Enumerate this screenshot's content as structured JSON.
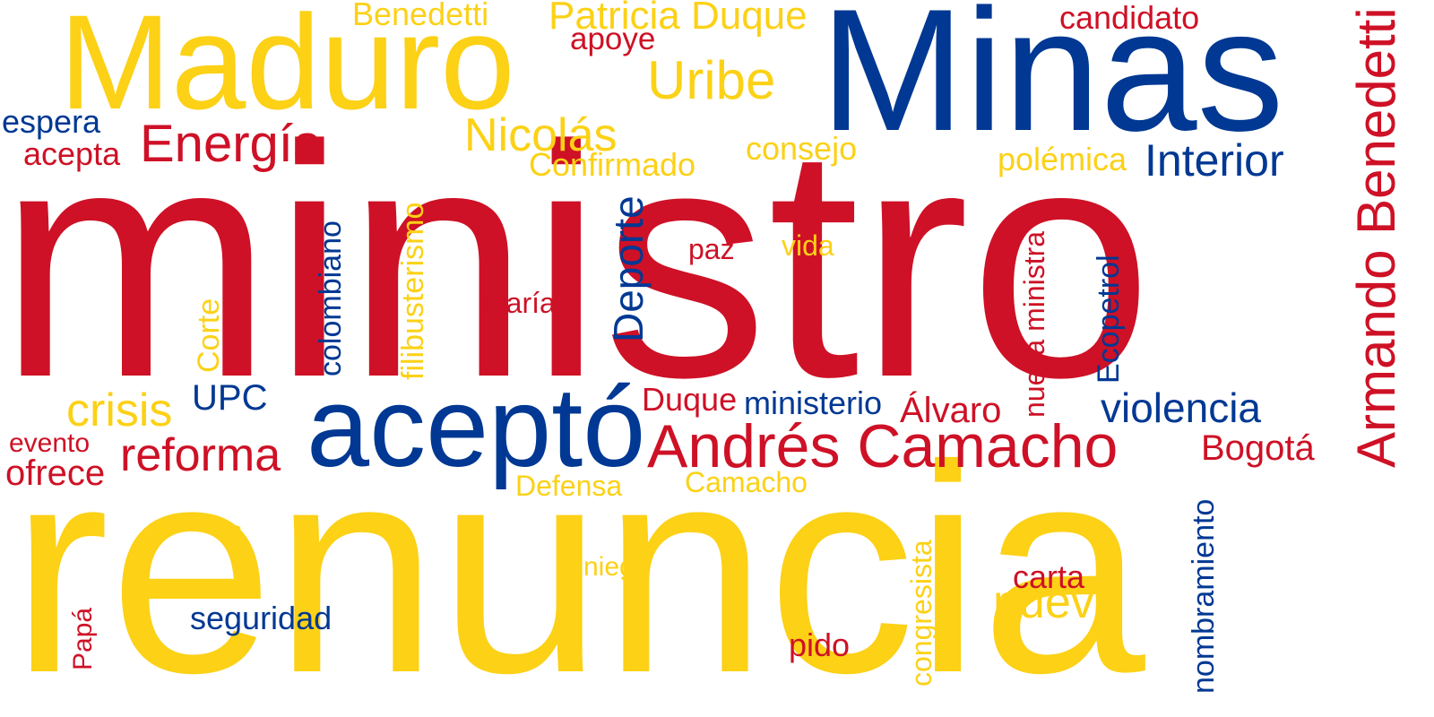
{
  "colors": {
    "red": "#CE1126",
    "yellow": "#FCD116",
    "blue": "#003893"
  },
  "words": [
    {
      "text": "ministro",
      "color": "red"
    },
    {
      "text": "renuncia",
      "color": "yellow"
    },
    {
      "text": "Minas",
      "color": "blue"
    },
    {
      "text": "Maduro",
      "color": "yellow"
    },
    {
      "text": "aceptó",
      "color": "blue"
    },
    {
      "text": "Andrés Camacho",
      "color": "red"
    },
    {
      "text": "Armando Benedetti",
      "color": "red"
    },
    {
      "text": "Energía",
      "color": "red"
    },
    {
      "text": "Uribe",
      "color": "yellow"
    },
    {
      "text": "Nicolás",
      "color": "yellow"
    },
    {
      "text": "Interior",
      "color": "blue"
    },
    {
      "text": "Patricia Duque",
      "color": "yellow"
    },
    {
      "text": "Benedetti",
      "color": "yellow"
    },
    {
      "text": "candidato",
      "color": "red"
    },
    {
      "text": "apoye",
      "color": "red"
    },
    {
      "text": "espera",
      "color": "blue"
    },
    {
      "text": "acepta",
      "color": "red"
    },
    {
      "text": "consejo",
      "color": "yellow"
    },
    {
      "text": "Confirmado",
      "color": "yellow"
    },
    {
      "text": "polémica",
      "color": "yellow"
    },
    {
      "text": "crisis",
      "color": "yellow"
    },
    {
      "text": "UPC",
      "color": "blue"
    },
    {
      "text": "reforma",
      "color": "red"
    },
    {
      "text": "evento",
      "color": "red"
    },
    {
      "text": "ofrece",
      "color": "red"
    },
    {
      "text": "violencia",
      "color": "blue"
    },
    {
      "text": "Bogotá",
      "color": "red"
    },
    {
      "text": "Duque",
      "color": "red"
    },
    {
      "text": "ministerio",
      "color": "blue"
    },
    {
      "text": "Álvaro",
      "color": "red"
    },
    {
      "text": "paz",
      "color": "red"
    },
    {
      "text": "vida",
      "color": "yellow"
    },
    {
      "text": "María",
      "color": "red"
    },
    {
      "text": "Defensa",
      "color": "yellow"
    },
    {
      "text": "Camacho",
      "color": "yellow"
    },
    {
      "text": "vs",
      "color": "yellow"
    },
    {
      "text": "niega",
      "color": "yellow"
    },
    {
      "text": "carta",
      "color": "red"
    },
    {
      "text": "nuevo",
      "color": "yellow"
    },
    {
      "text": "seguridad",
      "color": "blue"
    },
    {
      "text": "pido",
      "color": "red"
    },
    {
      "text": "colombiano",
      "color": "blue"
    },
    {
      "text": "filibusterismo",
      "color": "yellow"
    },
    {
      "text": "Corte",
      "color": "yellow"
    },
    {
      "text": "Deporte",
      "color": "blue"
    },
    {
      "text": "nueva ministra",
      "color": "red"
    },
    {
      "text": "Ecopetrol",
      "color": "blue"
    },
    {
      "text": "congresista",
      "color": "yellow"
    },
    {
      "text": "nombramiento",
      "color": "blue"
    },
    {
      "text": "Papá",
      "color": "red"
    }
  ]
}
